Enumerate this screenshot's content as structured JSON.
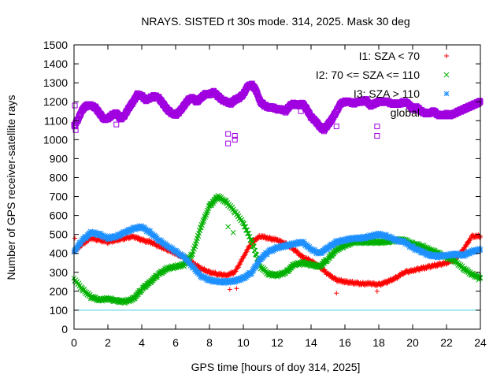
{
  "chart_data": {
    "type": "scatter",
    "title": "NRAYS. SISTED rt 30s mode. 314, 2025. Mask 30 deg",
    "xlabel": "GPS time [hours of doy 314, 2025]",
    "ylabel": "Number of GPS receiver-satellite rays",
    "xlim": [
      0,
      24
    ],
    "ylim": [
      0,
      1500
    ],
    "x_ticks": [
      0,
      2,
      4,
      6,
      8,
      10,
      12,
      14,
      16,
      18,
      20,
      22,
      24
    ],
    "y_ticks": [
      0,
      100,
      200,
      300,
      400,
      500,
      600,
      700,
      800,
      900,
      1000,
      1100,
      1200,
      1300,
      1400,
      1500
    ],
    "legend_position": "top-right",
    "reference_line": {
      "y": 100,
      "color": "#40d0e0"
    },
    "series": [
      {
        "name": "I1: SZA < 70",
        "marker": "+",
        "color": "#ff0000",
        "x": [
          0,
          0.5,
          1,
          1.5,
          2,
          2.5,
          3,
          3.5,
          4,
          4.5,
          5,
          5.5,
          6,
          6.5,
          7,
          7.5,
          8,
          8.5,
          9,
          9.5,
          10,
          10.5,
          11,
          11.5,
          12,
          12.5,
          13,
          13.5,
          14,
          14.5,
          15,
          15.5,
          16,
          16.5,
          17,
          17.5,
          18,
          18.5,
          19,
          19.5,
          20,
          20.5,
          21,
          21.5,
          22,
          22.5,
          23,
          23.5,
          24
        ],
        "y": [
          410,
          450,
          480,
          470,
          460,
          470,
          480,
          490,
          470,
          460,
          440,
          420,
          400,
          380,
          350,
          320,
          300,
          290,
          285,
          300,
          380,
          460,
          490,
          480,
          470,
          450,
          420,
          380,
          360,
          330,
          290,
          260,
          250,
          245,
          240,
          240,
          235,
          250,
          270,
          300,
          310,
          320,
          330,
          340,
          350,
          370,
          420,
          490,
          490
        ],
        "outliers": [
          {
            "x": 0.05,
            "y": 480
          },
          {
            "x": 9.2,
            "y": 210
          },
          {
            "x": 9.6,
            "y": 215
          },
          {
            "x": 15.5,
            "y": 190
          },
          {
            "x": 17.9,
            "y": 200
          }
        ]
      },
      {
        "name": "I2: 70 <= SZA <= 110",
        "marker": "x",
        "color": "#00b000",
        "x": [
          0,
          0.5,
          1,
          1.5,
          2,
          2.5,
          3,
          3.5,
          4,
          4.5,
          5,
          5.5,
          6,
          6.5,
          7,
          7.5,
          8,
          8.5,
          9,
          9.5,
          10,
          10.5,
          11,
          11.5,
          12,
          12.5,
          13,
          13.5,
          14,
          14.5,
          15,
          15.5,
          16,
          16.5,
          17,
          17.5,
          18,
          18.5,
          19,
          19.5,
          20,
          20.5,
          21,
          21.5,
          22,
          22.5,
          23,
          23.5,
          24
        ],
        "y": [
          265,
          210,
          170,
          155,
          160,
          150,
          145,
          160,
          210,
          250,
          290,
          320,
          330,
          340,
          400,
          540,
          650,
          700,
          670,
          620,
          560,
          460,
          330,
          290,
          285,
          300,
          340,
          350,
          340,
          330,
          370,
          420,
          440,
          460,
          460,
          460,
          460,
          460,
          470,
          470,
          450,
          440,
          420,
          400,
          380,
          360,
          320,
          290,
          270
        ],
        "outliers": [
          {
            "x": 9.1,
            "y": 540
          },
          {
            "x": 9.4,
            "y": 510
          },
          {
            "x": 23.9,
            "y": 260
          }
        ]
      },
      {
        "name": "I3: SZA > 110",
        "marker": "*",
        "color": "#1e90ff",
        "x": [
          0,
          0.5,
          1,
          1.5,
          2,
          2.5,
          3,
          3.5,
          4,
          4.5,
          5,
          5.5,
          6,
          6.5,
          7,
          7.5,
          8,
          8.5,
          9,
          9.5,
          10,
          10.5,
          11,
          11.5,
          12,
          12.5,
          13,
          13.5,
          14,
          14.5,
          15,
          15.5,
          16,
          16.5,
          17,
          17.5,
          18,
          18.5,
          19,
          19.5,
          20,
          20.5,
          21,
          21.5,
          22,
          22.5,
          23,
          23.5,
          24
        ],
        "y": [
          410,
          470,
          510,
          500,
          480,
          490,
          510,
          530,
          540,
          510,
          470,
          440,
          410,
          380,
          330,
          280,
          260,
          250,
          250,
          255,
          270,
          300,
          370,
          410,
          430,
          440,
          450,
          460,
          420,
          400,
          430,
          460,
          470,
          480,
          480,
          490,
          500,
          490,
          470,
          460,
          430,
          410,
          390,
          385,
          390,
          395,
          390,
          410,
          420
        ],
        "outliers": []
      },
      {
        "name": "global",
        "marker": "square",
        "color": "#a000e0",
        "x": [
          0,
          0.25,
          0.5,
          0.75,
          1,
          1.25,
          1.5,
          1.75,
          2,
          2.25,
          2.5,
          2.75,
          3,
          3.25,
          3.5,
          3.75,
          4,
          4.25,
          4.5,
          4.75,
          5,
          5.25,
          5.5,
          5.75,
          6,
          6.25,
          6.5,
          6.75,
          7,
          7.25,
          7.5,
          7.75,
          8,
          8.25,
          8.5,
          8.75,
          9,
          9.25,
          9.5,
          9.75,
          10,
          10.25,
          10.5,
          10.75,
          11,
          11.25,
          11.5,
          11.75,
          12,
          12.25,
          12.5,
          12.75,
          13,
          13.25,
          13.5,
          13.75,
          14,
          14.25,
          14.5,
          14.75,
          15,
          15.25,
          15.5,
          15.75,
          16,
          16.25,
          16.5,
          16.75,
          17,
          17.25,
          17.5,
          17.75,
          18,
          18.25,
          18.5,
          18.75,
          19,
          19.25,
          19.5,
          19.75,
          20,
          20.25,
          20.5,
          20.75,
          21,
          21.25,
          21.5,
          21.75,
          22,
          22.25,
          22.5,
          22.75,
          23,
          23.25,
          23.5,
          23.75,
          24
        ],
        "y": [
          1070,
          1110,
          1160,
          1180,
          1180,
          1170,
          1140,
          1110,
          1110,
          1130,
          1140,
          1110,
          1130,
          1170,
          1200,
          1240,
          1230,
          1210,
          1220,
          1230,
          1220,
          1190,
          1160,
          1140,
          1130,
          1150,
          1180,
          1210,
          1220,
          1200,
          1220,
          1240,
          1240,
          1250,
          1230,
          1210,
          1200,
          1190,
          1210,
          1220,
          1240,
          1280,
          1290,
          1260,
          1200,
          1180,
          1170,
          1170,
          1160,
          1160,
          1150,
          1180,
          1190,
          1180,
          1190,
          1160,
          1120,
          1100,
          1070,
          1050,
          1080,
          1110,
          1150,
          1190,
          1200,
          1200,
          1190,
          1200,
          1200,
          1210,
          1180,
          1190,
          1200,
          1200,
          1200,
          1190,
          1190,
          1190,
          1200,
          1190,
          1160,
          1170,
          1150,
          1140,
          1140,
          1150,
          1130,
          1130,
          1130,
          1130,
          1140,
          1150,
          1160,
          1170,
          1180,
          1190,
          1200
        ],
        "outliers": [
          {
            "x": 0.05,
            "y": 1180
          },
          {
            "x": 0.1,
            "y": 1050
          },
          {
            "x": 2.5,
            "y": 1080
          },
          {
            "x": 9.1,
            "y": 1030
          },
          {
            "x": 9.1,
            "y": 980
          },
          {
            "x": 9.5,
            "y": 1000
          },
          {
            "x": 9.5,
            "y": 1020
          },
          {
            "x": 13.4,
            "y": 1150
          },
          {
            "x": 15.5,
            "y": 1070
          },
          {
            "x": 17.9,
            "y": 1070
          },
          {
            "x": 17.9,
            "y": 1020
          }
        ]
      }
    ]
  }
}
